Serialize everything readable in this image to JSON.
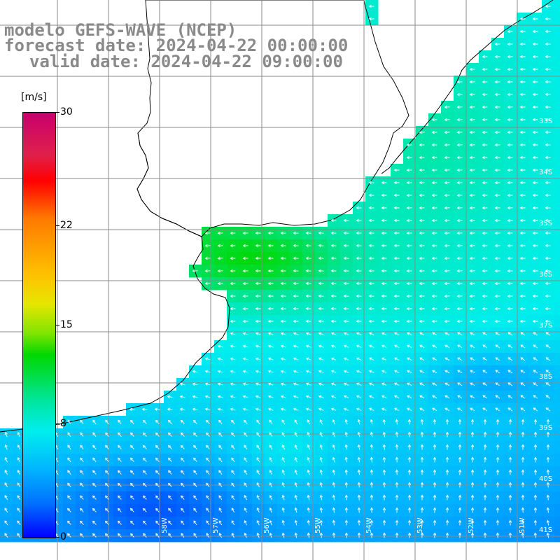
{
  "title": {
    "line1": "modelo GEFS-WAVE (NCEP)",
    "line2": "forecast date: 2024-04-22 00:00:00",
    "line3": "valid date: 2024-04-22 09:00:00"
  },
  "colorbar": {
    "unit": "[m/s]",
    "min": 0,
    "max": 30,
    "ticks": [
      "30",
      "22",
      "15",
      "8",
      "0"
    ],
    "colors": [
      "#0000ff",
      "#00b4ff",
      "#00eeee",
      "#00d800",
      "#e6e600",
      "#ff7a00",
      "#ff0000",
      "#c8006e"
    ]
  },
  "map": {
    "field": "wind speed and direction",
    "land_color": "#ffffff",
    "coastline_color": "#000000",
    "grid_color": "#888888",
    "arrow_color": "#ffffff",
    "lat_labels": [
      "33S",
      "34S",
      "35S",
      "36S",
      "37S",
      "38S",
      "39S",
      "40S",
      "41S"
    ],
    "lon_labels": [
      "58W",
      "57W",
      "56W",
      "55W",
      "54W",
      "53W",
      "52W",
      "51W"
    ]
  }
}
